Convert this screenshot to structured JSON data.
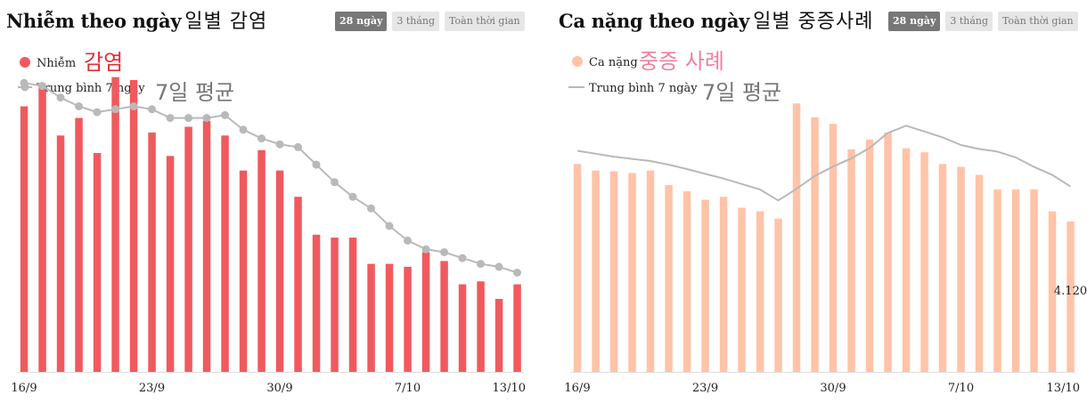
{
  "colors": {
    "cases_bar": "#f05a5e",
    "severe_bar": "#ffc3a8",
    "average_line": "#b9b9b9",
    "active_tab": "#777777",
    "inactive_tab": "#e6e6e6",
    "note_red": "#e0303a",
    "note_pink": "#f080a0",
    "note_gray": "#777777"
  },
  "tabs": [
    "28 ngày",
    "3 tháng",
    "Toàn thời gian"
  ],
  "active_tab": 0,
  "x_tick_labels": [
    "16/9",
    "23/9",
    "30/9",
    "7/10",
    "13/10"
  ],
  "panels": [
    {
      "title": "Nhiễm theo ngày",
      "title_note": "일별 감염",
      "legend": {
        "bar": "Nhiễm",
        "bar_note": "감염",
        "line": "Trung bình 7 ngày",
        "line_note": "7일 평균"
      }
    },
    {
      "title": "Ca nặng theo ngày",
      "title_note": "일별 중증사례",
      "legend": {
        "bar": "Ca nặng",
        "bar_note": "중증 사례",
        "line": "Trung bình 7 ngày",
        "line_note": "7일 평균"
      },
      "value_label": "4.120"
    }
  ],
  "chart_data": [
    {
      "type": "bar",
      "title": "Nhiễm theo ngày",
      "x": [
        "16/9",
        "17/9",
        "18/9",
        "19/9",
        "20/9",
        "21/9",
        "22/9",
        "23/9",
        "24/9",
        "25/9",
        "26/9",
        "27/9",
        "28/9",
        "29/9",
        "30/9",
        "1/10",
        "2/10",
        "3/10",
        "4/10",
        "5/10",
        "6/10",
        "7/10",
        "8/10",
        "9/10",
        "10/10",
        "11/10",
        "12/10",
        "13/10"
      ],
      "x_tick_labels": [
        "16/9",
        "23/9",
        "30/9",
        "7/10",
        "13/10"
      ],
      "ylim": [
        0,
        100
      ],
      "grid": false,
      "legend_position": "top-left",
      "series": [
        {
          "name": "Nhiễm",
          "type": "bar",
          "values": [
            91,
            98,
            81,
            87,
            75,
            101,
            100,
            82,
            74,
            84,
            86,
            81,
            69,
            76,
            69,
            60,
            47,
            46,
            46,
            37,
            37,
            36,
            41,
            38,
            30,
            31,
            25,
            30
          ]
        },
        {
          "name": "Trung bình 7 ngày",
          "type": "line",
          "values": [
            99,
            98,
            94,
            91,
            89,
            90,
            91,
            90,
            87,
            87,
            87,
            88,
            83,
            80,
            78,
            77,
            71,
            65,
            60,
            56,
            50,
            45,
            42,
            41,
            39,
            37,
            36,
            34
          ]
        }
      ]
    },
    {
      "type": "bar",
      "title": "Ca nặng theo ngày",
      "x": [
        "16/9",
        "17/9",
        "18/9",
        "19/9",
        "20/9",
        "21/9",
        "22/9",
        "23/9",
        "24/9",
        "25/9",
        "26/9",
        "27/9",
        "28/9",
        "29/9",
        "30/9",
        "1/10",
        "2/10",
        "3/10",
        "4/10",
        "5/10",
        "6/10",
        "7/10",
        "8/10",
        "9/10",
        "10/10",
        "11/10",
        "12/10",
        "13/10"
      ],
      "x_tick_labels": [
        "16/9",
        "23/9",
        "30/9",
        "7/10",
        "13/10"
      ],
      "ylim": [
        0,
        8000
      ],
      "grid": false,
      "legend_position": "top-left",
      "series": [
        {
          "name": "Ca nặng",
          "type": "bar",
          "values": [
            5700,
            5520,
            5500,
            5450,
            5520,
            5120,
            4950,
            4720,
            4800,
            4500,
            4400,
            4200,
            7360,
            6980,
            6800,
            6100,
            6370,
            6560,
            6130,
            6020,
            5700,
            5620,
            5400,
            5000,
            5000,
            5000,
            4400,
            4120
          ]
        },
        {
          "name": "Trung bình 7 ngày",
          "type": "line",
          "values": [
            6060,
            5980,
            5900,
            5840,
            5780,
            5680,
            5560,
            5430,
            5300,
            5150,
            5000,
            4700,
            5020,
            5370,
            5630,
            5850,
            6140,
            6550,
            6750,
            6590,
            6430,
            6220,
            6110,
            6040,
            5880,
            5620,
            5400,
            5080
          ]
        }
      ],
      "annotations": [
        "4.120"
      ]
    }
  ]
}
